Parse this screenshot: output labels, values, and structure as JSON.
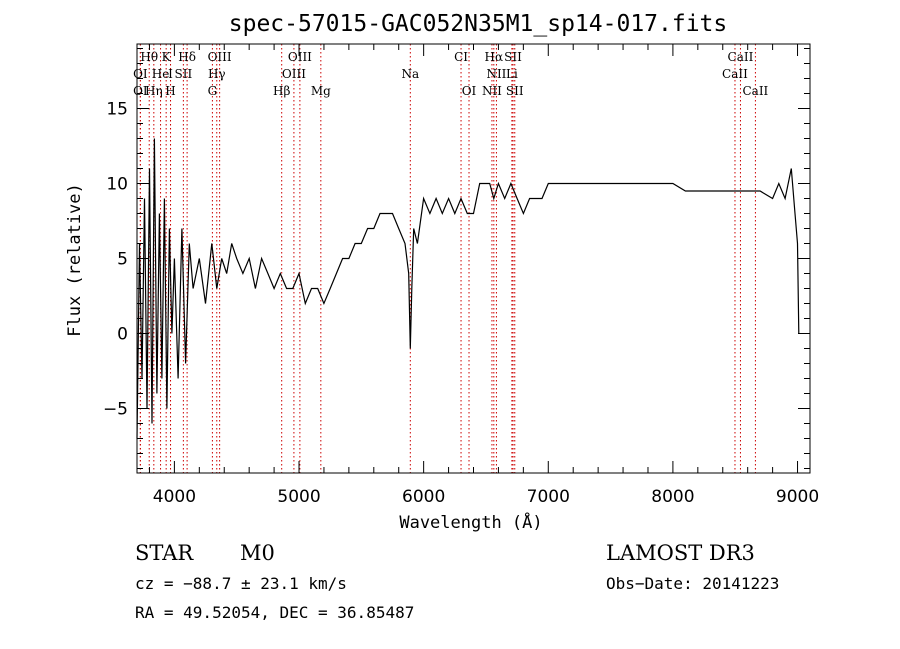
{
  "chart_data": {
    "type": "line",
    "title": "spec-57015-GAC052N35M1_sp14-017.fits",
    "xlabel": "Wavelength (Å)",
    "ylabel": "Flux (relative)",
    "xlim": [
      3700,
      9100
    ],
    "ylim": [
      -9.3,
      19.3
    ],
    "xticks": [
      4000,
      5000,
      6000,
      7000,
      8000,
      9000
    ],
    "yticks": [
      -5,
      0,
      5,
      10,
      15
    ],
    "xtick_labels": [
      "4000",
      "5000",
      "6000",
      "7000",
      "8000",
      "9000"
    ],
    "ytick_labels": [
      "−5",
      "0",
      "5",
      "10",
      "15"
    ],
    "grid": false,
    "legend": "none",
    "series_color": "#000000",
    "line_marker_color": "#cc0000",
    "series": [
      {
        "x": [
          3700,
          3720,
          3740,
          3760,
          3780,
          3800,
          3820,
          3840,
          3860,
          3880,
          3900,
          3920,
          3940,
          3960,
          3980,
          4000,
          4030,
          4060,
          4090,
          4120,
          4150,
          4200,
          4250,
          4300,
          4340,
          4380,
          4420,
          4460,
          4500,
          4550,
          4600,
          4650,
          4700,
          4750,
          4800,
          4850,
          4900,
          4950,
          5000,
          5050,
          5100,
          5150,
          5200,
          5250,
          5300,
          5350,
          5400,
          5450,
          5500,
          5550,
          5600,
          5650,
          5700,
          5750,
          5800,
          5850,
          5880,
          5893,
          5905,
          5920,
          5950,
          6000,
          6050,
          6100,
          6150,
          6200,
          6250,
          6300,
          6350,
          6400,
          6450,
          6500,
          6530,
          6563,
          6600,
          6650,
          6700,
          6750,
          6800,
          6850,
          6900,
          6950,
          7000,
          7050,
          7100,
          7150,
          7200,
          7250,
          7300,
          7400,
          7500,
          7600,
          7700,
          7800,
          7900,
          8000,
          8100,
          8200,
          8300,
          8400,
          8500,
          8600,
          8700,
          8800,
          8850,
          8900,
          8950,
          8980,
          9000,
          9010
        ],
        "y": [
          -7,
          6,
          -3,
          9,
          -5,
          11,
          -6,
          13,
          -4,
          8,
          -3,
          9,
          -5,
          7,
          0,
          5,
          -3,
          7,
          -2,
          6,
          3,
          5,
          2,
          6,
          3,
          5,
          4,
          6,
          5,
          4,
          5,
          3,
          5,
          4,
          3,
          4,
          3,
          3,
          4,
          2,
          3,
          3,
          2,
          3,
          4,
          5,
          5,
          6,
          6,
          7,
          7,
          8,
          8,
          8,
          7,
          6,
          4,
          -1,
          3,
          7,
          6,
          9,
          8,
          9,
          8,
          9,
          8,
          9,
          8,
          8,
          10,
          10,
          10,
          9,
          10,
          9,
          10,
          9,
          8,
          9,
          9,
          9,
          10,
          10,
          10,
          10,
          10,
          10,
          10,
          10,
          10,
          10,
          10,
          10,
          10,
          10,
          9.5,
          9.5,
          9.5,
          9.5,
          9.5,
          9.5,
          9.5,
          9,
          10,
          9,
          11,
          8,
          6,
          0
        ]
      }
    ],
    "spectral_lines": [
      {
        "name": "Hθ",
        "x": 3798,
        "row": 0
      },
      {
        "name": "K",
        "x": 3934,
        "row": 0
      },
      {
        "name": "Hδ",
        "x": 4102,
        "row": 0
      },
      {
        "name": "OIII",
        "x": 4363,
        "row": 0
      },
      {
        "name": "OIII",
        "x": 5007,
        "row": 0
      },
      {
        "name": "CI",
        "x": 6300,
        "row": 0
      },
      {
        "name": "Hα",
        "x": 6563,
        "row": 0
      },
      {
        "name": "SII",
        "x": 6717,
        "row": 0
      },
      {
        "name": "CaII",
        "x": 8542,
        "row": 0
      },
      {
        "name": "OI",
        "x": 3727,
        "row": 1
      },
      {
        "name": "He",
        "x": 3889,
        "row": 1
      },
      {
        "name": "I",
        "x": 3969,
        "row": 1
      },
      {
        "name": "SII",
        "x": 4072,
        "row": 1
      },
      {
        "name": "Hγ",
        "x": 4340,
        "row": 1
      },
      {
        "name": "OIII",
        "x": 4959,
        "row": 1
      },
      {
        "name": "Na",
        "x": 5893,
        "row": 1
      },
      {
        "name": "NII",
        "x": 6584,
        "row": 1
      },
      {
        "name": "Li",
        "x": 6708,
        "row": 1
      },
      {
        "name": "CaII",
        "x": 8498,
        "row": 1
      },
      {
        "name": "OI",
        "x": 3727,
        "row": 2
      },
      {
        "name": "Hη",
        "x": 3835,
        "row": 2
      },
      {
        "name": "H",
        "x": 3969,
        "row": 2
      },
      {
        "name": "G",
        "x": 4305,
        "row": 2
      },
      {
        "name": "Hβ",
        "x": 4861,
        "row": 2
      },
      {
        "name": "Mg",
        "x": 5175,
        "row": 2
      },
      {
        "name": "OI",
        "x": 6364,
        "row": 2
      },
      {
        "name": "NII",
        "x": 6548,
        "row": 2
      },
      {
        "name": "SII",
        "x": 6731,
        "row": 2
      },
      {
        "name": "CaII",
        "x": 8662,
        "row": 2
      }
    ]
  },
  "info": {
    "class_label": "STAR",
    "subclass": "M0",
    "survey": "LAMOST DR3",
    "cz": "cz = −88.7 ± 23.1 km/s",
    "obs_date": "Obs−Date: 20141223",
    "coords": "RA =  49.52054, DEC =  36.85487"
  }
}
